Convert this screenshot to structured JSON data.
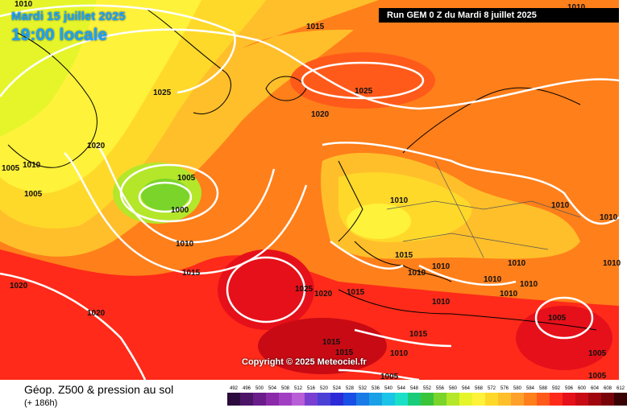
{
  "header": {
    "date": "Mardi 15 juillet 2025",
    "time": "19:00 locale",
    "run": "Run GEM 0 Z du Mardi 8 juillet 2025"
  },
  "copyright": "Copyright © 2025 Meteociel.fr",
  "legend": {
    "title": "Géop. Z500 & pression au sol",
    "subtitle": "(+ 186h)",
    "scale": [
      {
        "label": "492",
        "color": "#2b0a3d"
      },
      {
        "label": "496",
        "color": "#4b1467"
      },
      {
        "label": "500",
        "color": "#6a1d8a"
      },
      {
        "label": "504",
        "color": "#8a2aa8"
      },
      {
        "label": "508",
        "color": "#a13fc2"
      },
      {
        "label": "512",
        "color": "#b85ed6"
      },
      {
        "label": "516",
        "color": "#7a3fd1"
      },
      {
        "label": "520",
        "color": "#4b3fd6"
      },
      {
        "label": "524",
        "color": "#2b2ad6"
      },
      {
        "label": "528",
        "color": "#1a4fe6"
      },
      {
        "label": "532",
        "color": "#1a7ae6"
      },
      {
        "label": "536",
        "color": "#1aa0e6"
      },
      {
        "label": "540",
        "color": "#1ac4e6"
      },
      {
        "label": "544",
        "color": "#1ae0c8"
      },
      {
        "label": "548",
        "color": "#1acc7a"
      },
      {
        "label": "552",
        "color": "#3ac43a"
      },
      {
        "label": "556",
        "color": "#7ad42a"
      },
      {
        "label": "560",
        "color": "#b4e62a"
      },
      {
        "label": "564",
        "color": "#e6f52a"
      },
      {
        "label": "568",
        "color": "#fff23a"
      },
      {
        "label": "572",
        "color": "#ffd92a"
      },
      {
        "label": "576",
        "color": "#ffbf2a"
      },
      {
        "label": "580",
        "color": "#ffa02a"
      },
      {
        "label": "584",
        "color": "#ff7f1a"
      },
      {
        "label": "588",
        "color": "#ff5a1a"
      },
      {
        "label": "592",
        "color": "#ff2a1a"
      },
      {
        "label": "596",
        "color": "#e6101a"
      },
      {
        "label": "600",
        "color": "#c80a14"
      },
      {
        "label": "604",
        "color": "#a0060e"
      },
      {
        "label": "608",
        "color": "#78040a"
      },
      {
        "label": "612",
        "color": "#3a0204"
      }
    ]
  },
  "isobars": [
    {
      "text": "1010",
      "id": "iso-1010-a"
    },
    {
      "text": "1015",
      "id": "iso-1015-a"
    },
    {
      "text": "1025",
      "id": "iso-1025-a"
    },
    {
      "text": "1020",
      "id": "iso-1020-a"
    },
    {
      "text": "1025",
      "id": "iso-1025-b"
    },
    {
      "text": "1020",
      "id": "iso-1020-b"
    },
    {
      "text": "1005",
      "id": "iso-1005-a"
    },
    {
      "text": "1010",
      "id": "iso-1010-b"
    },
    {
      "text": "1005",
      "id": "iso-1005-b"
    },
    {
      "text": "1005",
      "id": "iso-1005-c"
    },
    {
      "text": "1000",
      "id": "iso-1000"
    },
    {
      "text": "1010",
      "id": "iso-1010-c"
    },
    {
      "text": "1015",
      "id": "iso-1015-b"
    },
    {
      "text": "1020",
      "id": "iso-1020-c"
    },
    {
      "text": "1020",
      "id": "iso-1020-d"
    },
    {
      "text": "1025",
      "id": "iso-1025-c"
    },
    {
      "text": "1020",
      "id": "iso-1020-e"
    },
    {
      "text": "1015",
      "id": "iso-1015-c"
    },
    {
      "text": "1010",
      "id": "iso-1010-d"
    },
    {
      "text": "1015",
      "id": "iso-1015-d"
    },
    {
      "text": "1010",
      "id": "iso-1010-e"
    },
    {
      "text": "1010",
      "id": "iso-1010-f"
    },
    {
      "text": "1010",
      "id": "iso-1010-g"
    },
    {
      "text": "1010",
      "id": "iso-1010-h"
    },
    {
      "text": "1010",
      "id": "iso-1010-i"
    },
    {
      "text": "1010",
      "id": "iso-1010-j"
    },
    {
      "text": "1010",
      "id": "iso-1010-k"
    },
    {
      "text": "1010",
      "id": "iso-1010-l"
    },
    {
      "text": "1010",
      "id": "iso-1010-m"
    },
    {
      "text": "1005",
      "id": "iso-1005-d"
    },
    {
      "text": "1015",
      "id": "iso-1015-e"
    },
    {
      "text": "1015",
      "id": "iso-1015-f"
    },
    {
      "text": "1015",
      "id": "iso-1015-g"
    },
    {
      "text": "1010",
      "id": "iso-1010-n"
    },
    {
      "text": "1005",
      "id": "iso-1005-e"
    },
    {
      "text": "1005",
      "id": "iso-1005-f"
    },
    {
      "text": "1005",
      "id": "iso-1005-g"
    },
    {
      "text": "1010",
      "id": "iso-1010-o"
    },
    {
      "text": "1010",
      "id": "iso-1010-p"
    }
  ]
}
